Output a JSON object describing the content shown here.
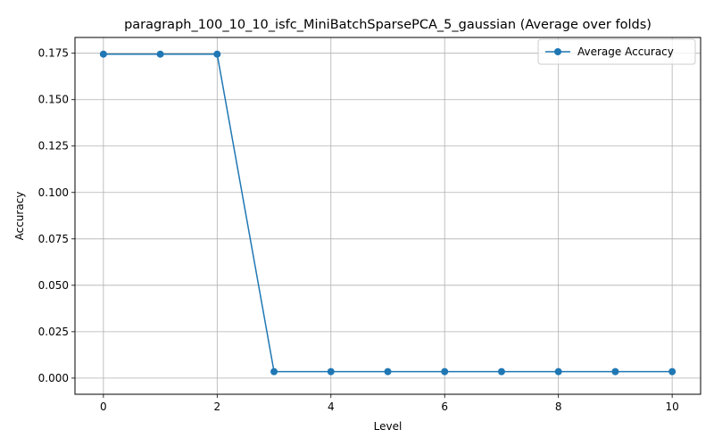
{
  "chart_data": {
    "type": "line",
    "title": "paragraph_100_10_10_isfc_MiniBatchSparsePCA_5_gaussian (Average over folds)",
    "xlabel": "Level",
    "ylabel": "Accuracy",
    "xlim": [
      -0.5,
      10.5
    ],
    "ylim": [
      -0.0087,
      0.1835
    ],
    "xticks": [
      0,
      2,
      4,
      6,
      8,
      10
    ],
    "xtick_labels": [
      "0",
      "2",
      "4",
      "6",
      "8",
      "10"
    ],
    "yticks": [
      0.0,
      0.025,
      0.05,
      0.075,
      0.1,
      0.125,
      0.15,
      0.175
    ],
    "ytick_labels": [
      "0.000",
      "0.025",
      "0.050",
      "0.075",
      "0.100",
      "0.125",
      "0.150",
      "0.175"
    ],
    "grid": true,
    "legend": {
      "placement": "top-right"
    },
    "series": [
      {
        "name": "Average Accuracy",
        "color": "#1f77b4",
        "marker": "circle",
        "x": [
          0,
          1,
          2,
          3,
          4,
          5,
          6,
          7,
          8,
          9,
          10
        ],
        "y": [
          0.1745,
          0.1745,
          0.1745,
          0.0035,
          0.0035,
          0.0035,
          0.0035,
          0.0035,
          0.0035,
          0.0035,
          0.0035
        ]
      }
    ]
  }
}
